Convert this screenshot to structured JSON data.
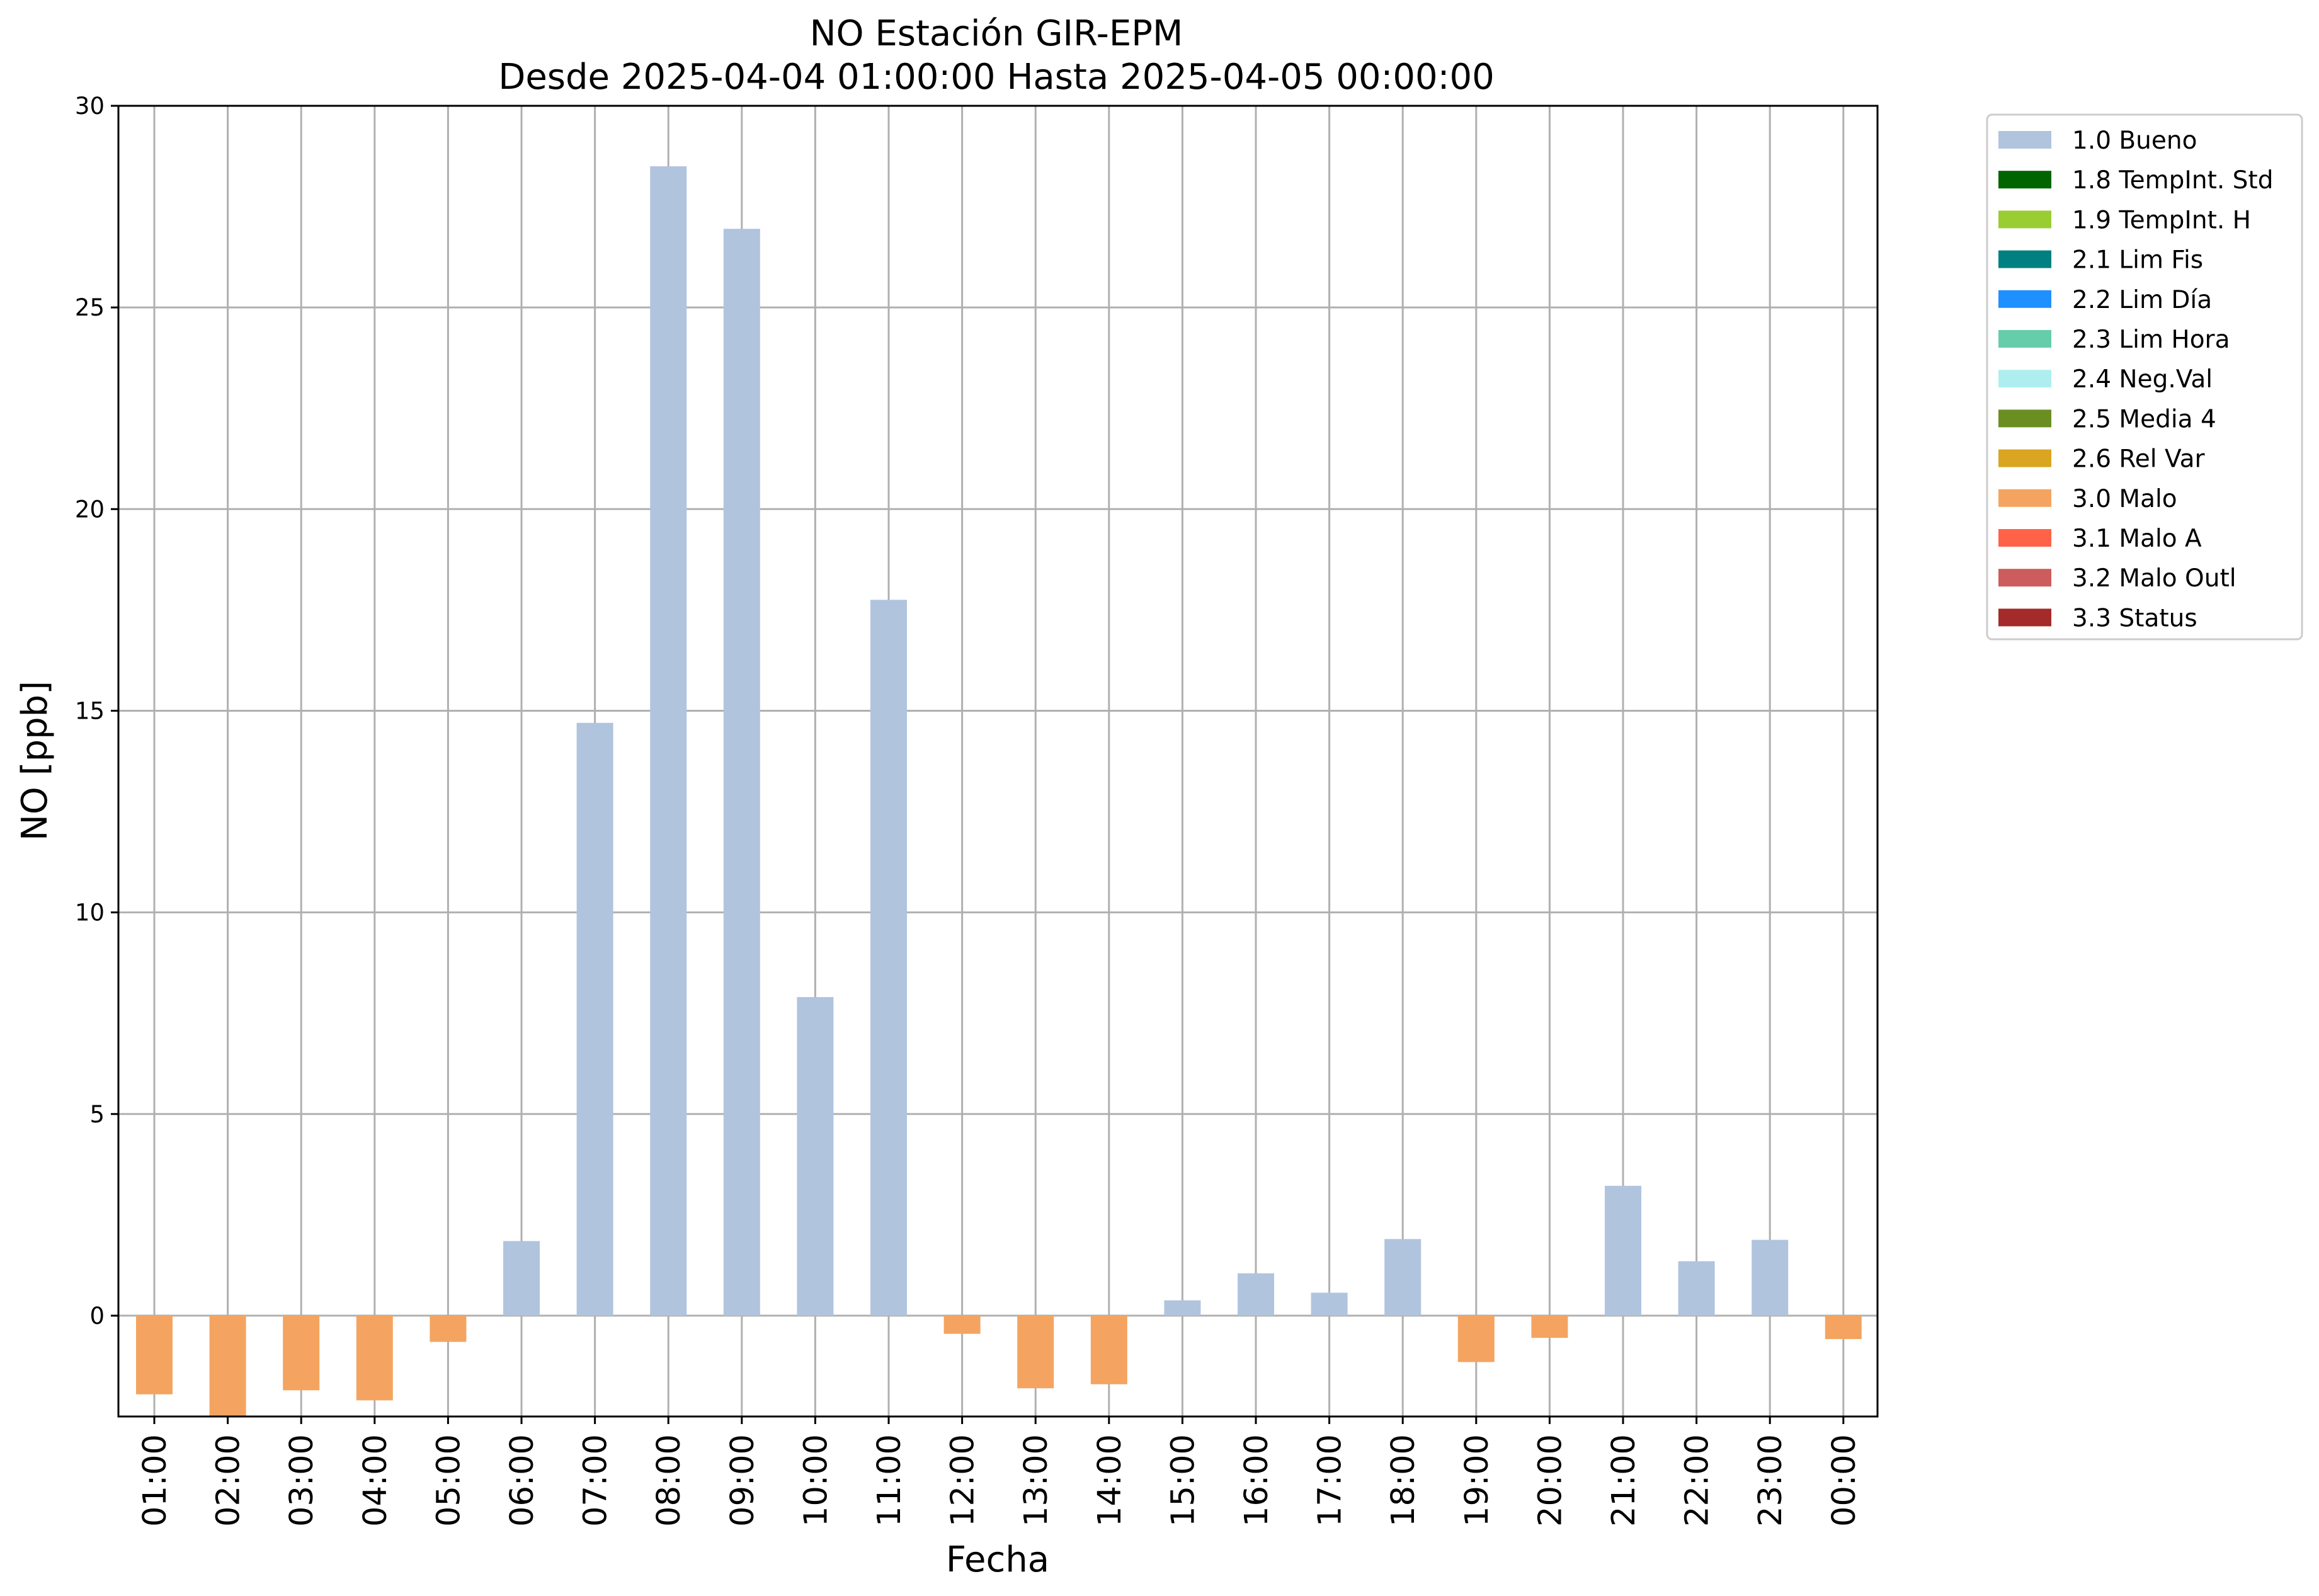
{
  "chart_data": {
    "type": "bar",
    "title_line1": "NO Estación GIR-EPM",
    "title_line2": "Desde 2025-04-04 01:00:00 Hasta 2025-04-05 00:00:00",
    "xlabel": "Fecha",
    "ylabel": "NO [ppb]",
    "ylim": [
      -2.5,
      30
    ],
    "yticks": [
      0,
      5,
      10,
      15,
      20,
      25,
      30
    ],
    "grid": true,
    "legend_position": "outside-top-right",
    "categories": [
      "01:00",
      "02:00",
      "03:00",
      "04:00",
      "05:00",
      "06:00",
      "07:00",
      "08:00",
      "09:00",
      "10:00",
      "11:00",
      "12:00",
      "13:00",
      "14:00",
      "15:00",
      "16:00",
      "17:00",
      "18:00",
      "19:00",
      "20:00",
      "21:00",
      "22:00",
      "23:00",
      "00:00"
    ],
    "values": [
      -1.95,
      -2.5,
      -1.85,
      -2.1,
      -0.65,
      1.85,
      14.7,
      28.5,
      26.95,
      7.9,
      17.75,
      -0.45,
      -1.8,
      -1.7,
      0.38,
      1.05,
      0.57,
      1.9,
      -1.15,
      -0.55,
      3.22,
      1.35,
      1.88,
      -0.58
    ],
    "flags": [
      "3.0 Malo",
      "3.0 Malo",
      "3.0 Malo",
      "3.0 Malo",
      "3.0 Malo",
      "1.0 Bueno",
      "1.0 Bueno",
      "1.0 Bueno",
      "1.0 Bueno",
      "1.0 Bueno",
      "1.0 Bueno",
      "3.0 Malo",
      "3.0 Malo",
      "3.0 Malo",
      "1.0 Bueno",
      "1.0 Bueno",
      "1.0 Bueno",
      "1.0 Bueno",
      "3.0 Malo",
      "3.0 Malo",
      "1.0 Bueno",
      "1.0 Bueno",
      "1.0 Bueno",
      "3.0 Malo"
    ],
    "legend": [
      {
        "label": "1.0 Bueno",
        "color": "#b0c4de"
      },
      {
        "label": "1.8 TempInt. Std",
        "color": "#006400"
      },
      {
        "label": "1.9 TempInt. H",
        "color": "#9acd32"
      },
      {
        "label": "2.1 Lim Fis",
        "color": "#008080"
      },
      {
        "label": "2.2 Lim Día",
        "color": "#1e90ff"
      },
      {
        "label": "2.3 Lim Hora",
        "color": "#66cdaa"
      },
      {
        "label": "2.4 Neg.Val",
        "color": "#afeeee"
      },
      {
        "label": "2.5 Media 4",
        "color": "#6b8e23"
      },
      {
        "label": "2.6 Rel Var",
        "color": "#daa520"
      },
      {
        "label": "3.0 Malo",
        "color": "#f4a460"
      },
      {
        "label": "3.1 Malo A",
        "color": "#ff6347"
      },
      {
        "label": "3.2 Malo Outl",
        "color": "#cd5c5c"
      },
      {
        "label": "3.3 Status",
        "color": "#a52a2a"
      }
    ]
  }
}
